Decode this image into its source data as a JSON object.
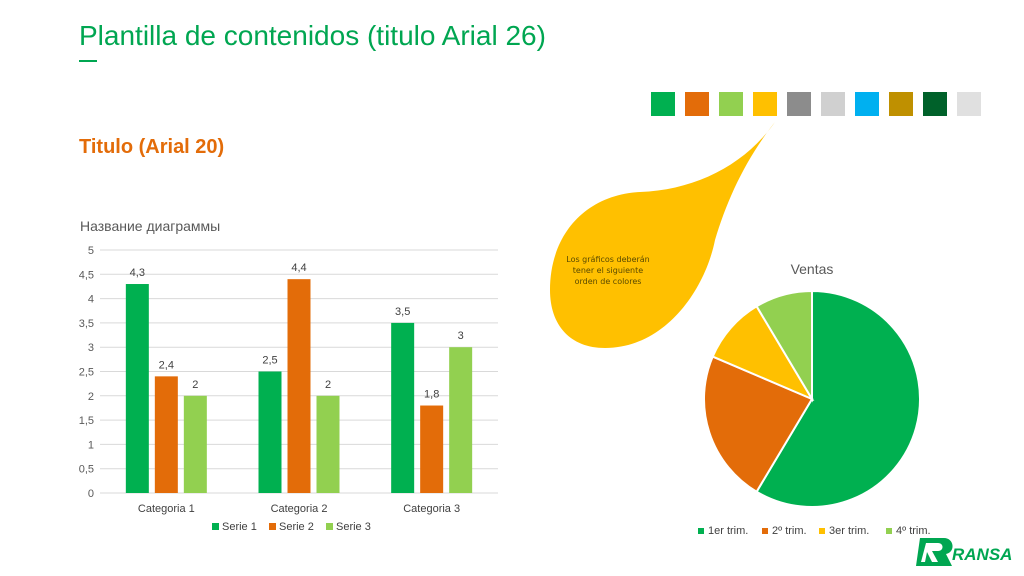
{
  "slide": {
    "title": "Plantilla de contenidos (titulo Arial 26)",
    "subtitle": "Titulo (Arial 20)"
  },
  "palette": {
    "colors": [
      "#00b050",
      "#e36c09",
      "#92d050",
      "#ffc000",
      "#8c8c8c",
      "#d0d0d0",
      "#00b0f0",
      "#bf9000",
      "#00612a",
      "#e0e0e0"
    ]
  },
  "callout": {
    "lines": [
      "Los gráficos deberán",
      "tener el siguiente",
      "orden de colores"
    ],
    "color": "#ffc000"
  },
  "logo": {
    "text": "RANSA"
  },
  "chart_data": [
    {
      "type": "bar",
      "title": "Название диаграммы",
      "categories": [
        "Categoria 1",
        "Categoria 2",
        "Categoria 3"
      ],
      "series": [
        {
          "name": "Serie 1",
          "values": [
            4.3,
            2.5,
            3.5
          ],
          "labels": [
            "4,3",
            "2,5",
            "3,5"
          ],
          "color": "#00b050"
        },
        {
          "name": "Serie 2",
          "values": [
            2.4,
            4.4,
            1.8
          ],
          "labels": [
            "2,4",
            "4,4",
            "1,8"
          ],
          "color": "#e36c09"
        },
        {
          "name": "Serie 3",
          "values": [
            2,
            2,
            3
          ],
          "labels": [
            "2",
            "2",
            "3"
          ],
          "color": "#92d050"
        }
      ],
      "ylim": [
        0,
        5
      ],
      "yticks": [
        "0",
        "0,5",
        "1",
        "1,5",
        "2",
        "2,5",
        "3",
        "3,5",
        "4",
        "4,5",
        "5"
      ],
      "grid": true,
      "legend": "bottom"
    },
    {
      "type": "pie",
      "title": "Ventas",
      "labels": [
        "1er trim.",
        "2º trim.",
        "3er trim.",
        "4º trim."
      ],
      "values": [
        8.2,
        3.2,
        1.4,
        1.2
      ],
      "colors": [
        "#00b050",
        "#e36c09",
        "#ffc000",
        "#92d050"
      ],
      "legend": "bottom"
    }
  ]
}
